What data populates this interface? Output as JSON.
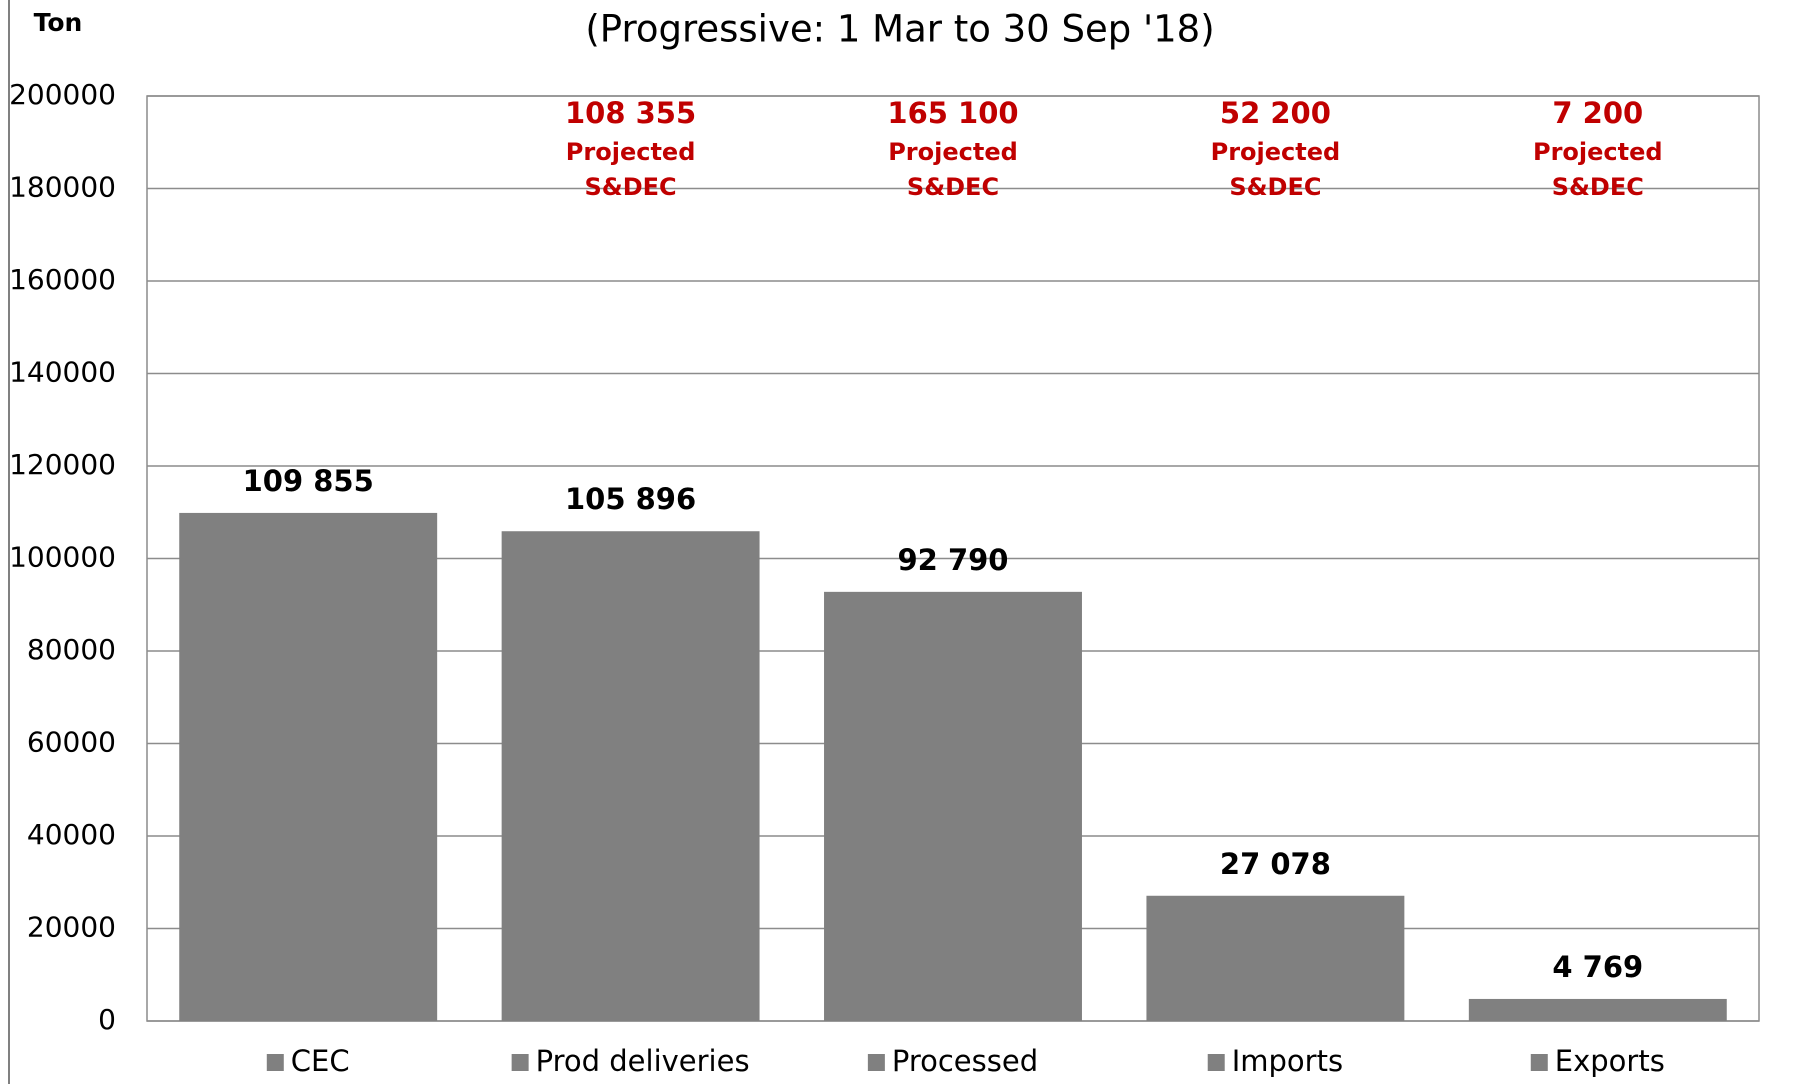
{
  "chart_data": {
    "type": "bar",
    "title": "(Progressive: 1 Mar to 30 Sep '18)",
    "y_label": "Ton",
    "categories": [
      "CEC",
      "Prod deliveries",
      "Processed",
      "Imports",
      "Exports"
    ],
    "values": [
      109855,
      105896,
      92790,
      27078,
      4769
    ],
    "value_labels": [
      "109 855",
      "105 896",
      "92 790",
      "27 078",
      "4 769"
    ],
    "projected_labels": [
      null,
      "108 355",
      "165 100",
      "52 200",
      "7 200"
    ],
    "projected_note": [
      "Projected",
      "S&DEC"
    ],
    "color": "#808080",
    "note_color": "#c00000",
    "ylim": [
      0,
      200000
    ],
    "yticks": [
      0,
      20000,
      40000,
      60000,
      80000,
      100000,
      120000,
      140000,
      160000,
      180000,
      200000
    ],
    "grid": true,
    "legend": "bottom"
  }
}
